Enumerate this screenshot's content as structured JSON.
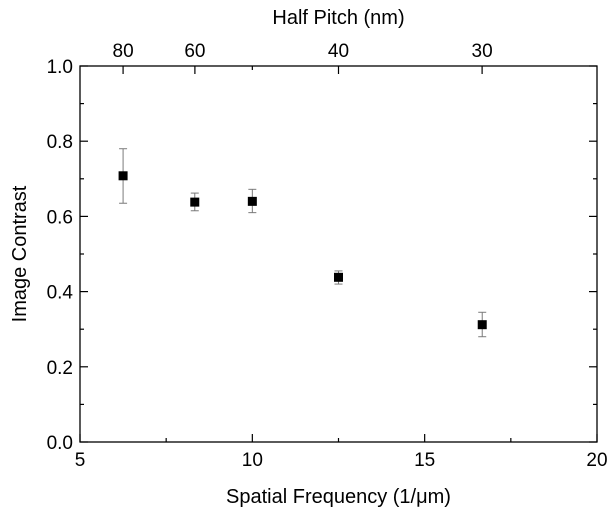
{
  "chart_data": {
    "type": "scatter",
    "title": "",
    "xlabel": "Spatial Frequency (1/μm)",
    "ylabel": "Image Contrast",
    "top_xlabel": "Half Pitch (nm)",
    "xlim": [
      5,
      20
    ],
    "ylim": [
      0.0,
      1.0
    ],
    "x_ticks": [
      5,
      10,
      15,
      20
    ],
    "x_tick_labels": [
      "5",
      "10",
      "15",
      "20"
    ],
    "x_minor_ticks": [
      7.5,
      12.5,
      17.5
    ],
    "y_ticks": [
      0.0,
      0.2,
      0.4,
      0.6,
      0.8,
      1.0
    ],
    "y_tick_labels": [
      "0.0",
      "0.2",
      "0.4",
      "0.6",
      "0.8",
      "1.0"
    ],
    "y_minor_ticks": [
      0.1,
      0.3,
      0.5,
      0.7,
      0.9
    ],
    "top_ticks": [
      {
        "half_pitch_nm": 80,
        "label": "80"
      },
      {
        "half_pitch_nm": 60,
        "label": "60"
      },
      {
        "half_pitch_nm": 40,
        "label": "40"
      },
      {
        "half_pitch_nm": 30,
        "label": "30"
      }
    ],
    "top_minor_ticks_nm": [
      50
    ],
    "grid": false,
    "series": [
      {
        "marker": "square",
        "color": "#000000",
        "error_color": "#7a7a7a",
        "points": [
          {
            "x": 6.25,
            "y": 0.708,
            "err_low": 0.635,
            "err_high": 0.78
          },
          {
            "x": 8.33,
            "y": 0.638,
            "err_low": 0.615,
            "err_high": 0.662
          },
          {
            "x": 10.0,
            "y": 0.64,
            "err_low": 0.61,
            "err_high": 0.672
          },
          {
            "x": 12.5,
            "y": 0.438,
            "err_low": 0.42,
            "err_high": 0.455
          },
          {
            "x": 16.67,
            "y": 0.312,
            "err_low": 0.28,
            "err_high": 0.345
          }
        ]
      }
    ]
  }
}
